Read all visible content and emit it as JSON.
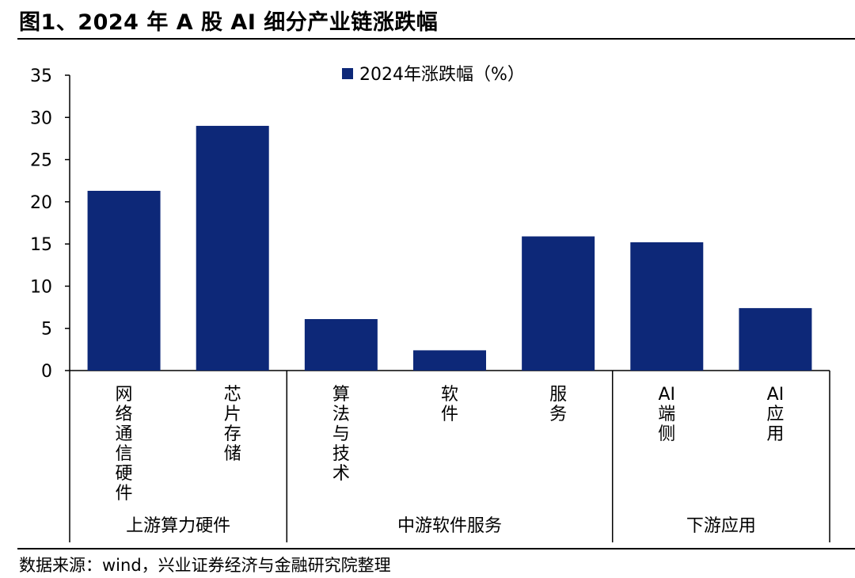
{
  "header": {
    "title": "图1、2024 年 A 股 AI 细分产业链涨跌幅"
  },
  "footer": {
    "source": "数据来源：wind，兴业证券经济与金融研究院整理"
  },
  "chart_data": {
    "type": "bar",
    "categories": [
      "网络通信硬件",
      "芯片存储",
      "算法与技术",
      "软件",
      "服务",
      "AI 端侧",
      "AI 应用"
    ],
    "series": [
      {
        "name": "2024年涨跌幅（%）",
        "values": [
          21.3,
          29.0,
          6.1,
          2.4,
          15.9,
          15.2,
          7.4
        ],
        "color": "#0d2878"
      }
    ],
    "groups": [
      {
        "label": "上游算力硬件",
        "categories": [
          "网络通信硬件",
          "芯片存储"
        ]
      },
      {
        "label": "中游软件服务",
        "categories": [
          "算法与技术",
          "软件",
          "服务"
        ]
      },
      {
        "label": "下游应用",
        "categories": [
          "AI 端侧",
          "AI 应用"
        ]
      }
    ],
    "ylim": [
      0,
      35
    ],
    "yticks": [
      "0",
      "5",
      "10",
      "15",
      "20",
      "25",
      "30",
      "35"
    ],
    "grid": false,
    "legend_position": "top-center"
  }
}
